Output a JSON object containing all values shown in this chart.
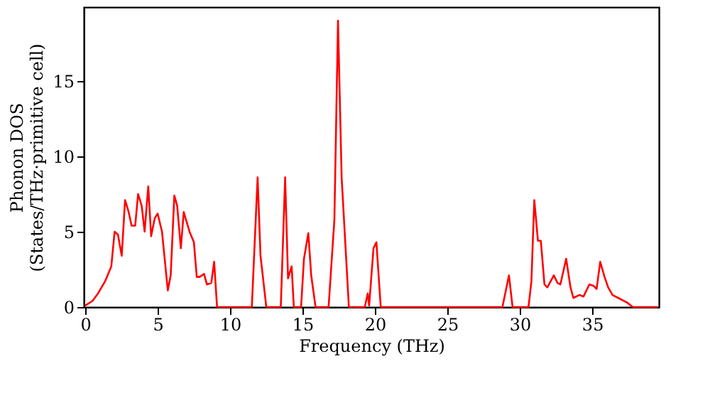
{
  "chart_data": {
    "type": "line",
    "xlabel": "Frequency (THz)",
    "ylabel": "Phonon DOS\n(States/THz·primitive cell)",
    "xlim": [
      -0.1,
      39.6
    ],
    "ylim": [
      0,
      19.9
    ],
    "xticks": [
      0,
      5,
      10,
      15,
      20,
      25,
      30,
      35
    ],
    "yticks": [
      0,
      5,
      10,
      15
    ],
    "grid": false,
    "series": [
      {
        "color": "#ff0000",
        "x": [
          0,
          0.5,
          0.88,
          1.37,
          1.8,
          2.03,
          2.26,
          2.52,
          2.75,
          3.0,
          3.2,
          3.45,
          3.65,
          3.9,
          4.1,
          4.35,
          4.55,
          4.8,
          5.0,
          5.3,
          5.7,
          5.9,
          6.15,
          6.35,
          6.6,
          6.8,
          7.2,
          7.5,
          7.7,
          7.9,
          8.2,
          8.4,
          8.7,
          8.9,
          9.1,
          11.5,
          11.9,
          12.1,
          12.5,
          13.5,
          13.8,
          14.0,
          14.25,
          14.4,
          14.9,
          15.1,
          15.4,
          15.6,
          15.9,
          16.8,
          17.2,
          17.45,
          17.7,
          18.2,
          19.3,
          19.5,
          19.6,
          19.9,
          20.1,
          20.4,
          28.8,
          29.25,
          29.5,
          30.6,
          30.8,
          31.0,
          31.25,
          31.45,
          31.7,
          31.9,
          32.35,
          32.6,
          32.8,
          33.2,
          33.5,
          33.7,
          34.1,
          34.4,
          34.8,
          35.1,
          35.3,
          35.55,
          35.85,
          36.1,
          36.4,
          36.8,
          37.4,
          37.8,
          39.5
        ],
        "values": [
          0.1,
          0.4,
          0.9,
          1.7,
          2.7,
          5.0,
          4.8,
          3.4,
          7.1,
          6.3,
          5.4,
          5.4,
          7.5,
          6.7,
          5.0,
          8.0,
          4.7,
          5.9,
          6.2,
          5.0,
          1.1,
          2.1,
          7.4,
          6.7,
          3.9,
          6.3,
          5.0,
          4.3,
          2.0,
          2.0,
          2.2,
          1.5,
          1.6,
          3.0,
          0,
          0,
          8.6,
          3.4,
          0,
          0,
          8.6,
          1.9,
          2.7,
          0,
          0,
          3.2,
          4.9,
          2.1,
          0,
          0,
          5.8,
          19.0,
          8.6,
          0,
          0,
          0.9,
          0.1,
          3.9,
          4.3,
          0,
          0,
          2.1,
          0,
          0,
          1.7,
          7.1,
          4.4,
          4.4,
          1.5,
          1.3,
          2.1,
          1.6,
          1.5,
          3.2,
          1.3,
          0.6,
          0.8,
          0.7,
          1.5,
          1.4,
          1.2,
          3.0,
          2.0,
          1.3,
          0.8,
          0.6,
          0.3,
          0,
          0
        ]
      }
    ]
  }
}
